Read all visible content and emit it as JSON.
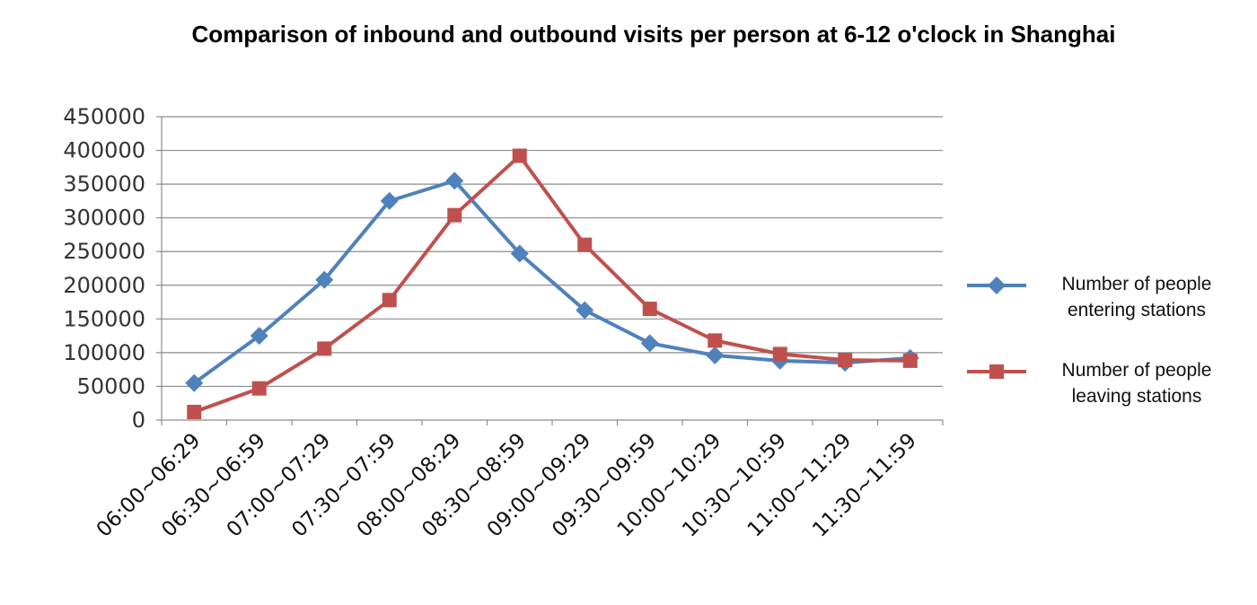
{
  "chart_data": {
    "type": "line",
    "title": "Comparison of inbound and outbound visits per person at 6-12 o'clock in Shanghai",
    "xlabel": "",
    "ylabel": "",
    "categories": [
      "06:00~06:29",
      "06:30~06:59",
      "07:00~07:29",
      "07:30~07:59",
      "08:00~08:29",
      "08:30~08:59",
      "09:00~09:29",
      "09:30~09:59",
      "10:00~10:29",
      "10:30~10:59",
      "11:00~11:29",
      "11:30~11:59"
    ],
    "yticks": [
      "0",
      "50000",
      "100000",
      "150000",
      "200000",
      "250000",
      "300000",
      "350000",
      "400000",
      "450000"
    ],
    "ylim": [
      0,
      450000
    ],
    "grid": true,
    "legend_position": "right",
    "series": [
      {
        "name": "Number of people entering stations",
        "legend_lines": [
          "Number of people",
          "entering stations"
        ],
        "color": "#4F81BD",
        "marker": "diamond",
        "values": [
          55000,
          125000,
          208000,
          325000,
          355000,
          247000,
          163000,
          114000,
          96000,
          88000,
          85000,
          92000
        ]
      },
      {
        "name": "Number of people leaving stations",
        "legend_lines": [
          "Number of people",
          "leaving stations"
        ],
        "color": "#C0504D",
        "marker": "square",
        "values": [
          12000,
          47000,
          106000,
          178000,
          304000,
          392000,
          260000,
          165000,
          118000,
          98000,
          89000,
          88000
        ]
      }
    ]
  }
}
